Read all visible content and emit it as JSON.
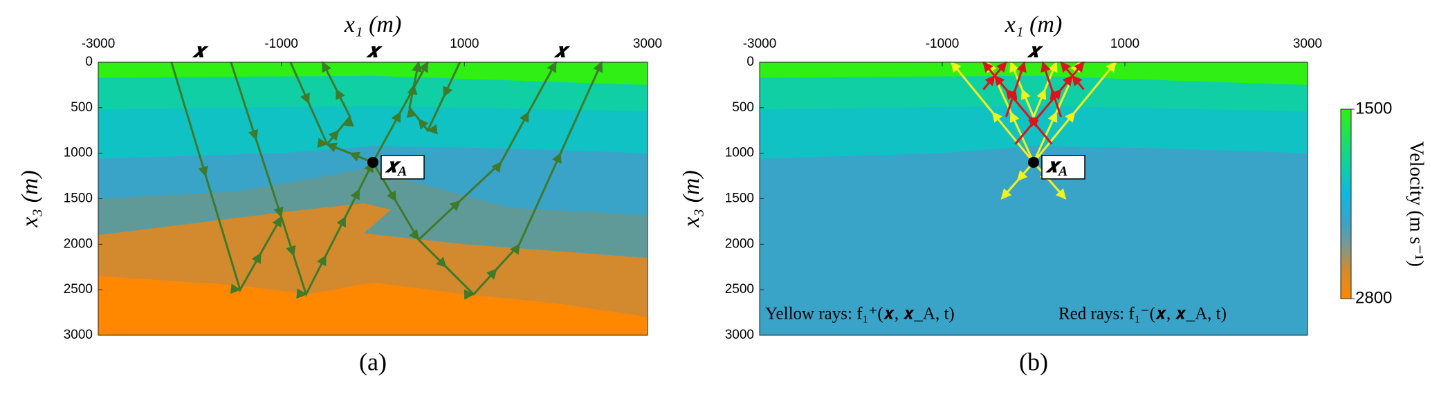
{
  "chart_data": [
    {
      "type": "section",
      "x_label": "x₁ (m)",
      "y_label": "x₃ (m)",
      "xlim": [
        -3000,
        3000
      ],
      "ylim": [
        0,
        3000
      ],
      "xticks": [
        -3000,
        -1000,
        1000,
        3000
      ],
      "yticks": [
        0,
        500,
        1000,
        1500,
        2000,
        2500,
        3000
      ],
      "source_markers": [
        {
          "value": -1900,
          "label": "𝒙"
        },
        {
          "value": 0,
          "label": "𝒙"
        },
        {
          "value": 2050,
          "label": "𝒙"
        }
      ],
      "focal_point": {
        "x": 0,
        "z": 1100,
        "symbol": "𝒙",
        "subscript": "A"
      },
      "caption": "(a)"
    },
    {
      "type": "section",
      "x_label": "x₁ (m)",
      "y_label": "x₃ (m)",
      "xlim": [
        -3000,
        3000
      ],
      "ylim": [
        0,
        3000
      ],
      "xticks": [
        -3000,
        -1000,
        1000,
        3000
      ],
      "yticks": [
        0,
        500,
        1000,
        1500,
        2000,
        2500,
        3000
      ],
      "source_markers": [
        {
          "value": 0,
          "label": "𝒙"
        }
      ],
      "focal_point": {
        "x": 0,
        "z": 1100,
        "symbol": "𝒙",
        "subscript": "A"
      },
      "annotations": [
        "Yellow rays:  f₁⁺(𝒙, 𝒙_A, t)",
        "Red rays:  f₁⁻(𝒙, 𝒙_A, t)"
      ],
      "caption": "(b)"
    },
    {
      "type": "colorbar",
      "label": "Velocity (m s⁻¹)",
      "clim": [
        1500,
        2800
      ],
      "ticks": [
        1500,
        2800
      ]
    }
  ]
}
